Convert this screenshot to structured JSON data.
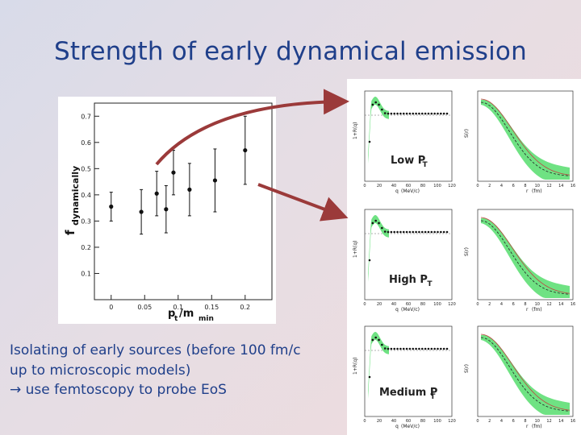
{
  "slide": {
    "title": "Strength of early dynamical emission",
    "body_lines": [
      "Isolating of early sources (before 100 fm/c",
      "up to microscopic models)",
      "use femtoscopy to probe EoS"
    ],
    "arrow_glyph": "→"
  },
  "colors": {
    "title": "#1f3f8a",
    "arrow": "#9b3a3a",
    "band": "#3fd85a",
    "marker": "#111111"
  },
  "chart_data": [
    {
      "type": "scatter",
      "title": "",
      "ylabel": "f",
      "ylabel_sub": "dynamically",
      "xlabel": "p",
      "xlabel_sub1": "t",
      "xlabel_mid": "/m",
      "xlabel_sub2": "min",
      "xlim": [
        -0.025,
        0.24
      ],
      "ylim": [
        0.0,
        0.75
      ],
      "xticks": [
        0,
        0.05,
        0.1,
        0.15,
        0.2
      ],
      "xtick_labels": [
        "0",
        "0.05",
        "0.1",
        "0.15",
        "0.2"
      ],
      "yticks": [
        0.1,
        0.2,
        0.3,
        0.4,
        0.5,
        0.6,
        0.7
      ],
      "ytick_labels": [
        "0.1",
        "0.2",
        "0.3",
        "0.4",
        "0.5",
        "0.6",
        "0.7"
      ],
      "points": [
        {
          "x": 0.0,
          "y": 0.355,
          "err": 0.055
        },
        {
          "x": 0.045,
          "y": 0.335,
          "err": 0.085
        },
        {
          "x": 0.068,
          "y": 0.405,
          "err": 0.085
        },
        {
          "x": 0.082,
          "y": 0.345,
          "err": 0.09
        },
        {
          "x": 0.093,
          "y": 0.485,
          "err": 0.085
        },
        {
          "x": 0.117,
          "y": 0.42,
          "err": 0.1
        },
        {
          "x": 0.155,
          "y": 0.455,
          "err": 0.12
        },
        {
          "x": 0.2,
          "y": 0.57,
          "err": 0.13
        }
      ]
    }
  ],
  "small_panels": {
    "left": {
      "ylabel": "1+R(q)",
      "xlabel_q": "q",
      "xlabel_unit": "(MeV/c)",
      "xticks": [
        0,
        20,
        40,
        60,
        80,
        100,
        120
      ],
      "xtick_labels": [
        "0",
        "20",
        "40",
        "60",
        "80",
        "100",
        "120"
      ]
    },
    "right": {
      "ylabel": "S(r)",
      "xlabel_r": "r",
      "xlabel_unit": "(fm)",
      "xticks": [
        0,
        2,
        4,
        6,
        8,
        10,
        12,
        14,
        16
      ],
      "xtick_labels": [
        "0",
        "2",
        "4",
        "6",
        "8",
        "10",
        "12",
        "14",
        "16"
      ]
    },
    "rows": [
      {
        "label": "Low P",
        "label_sub": "T"
      },
      {
        "label": "High P",
        "label_sub": "T"
      },
      {
        "label": "Medium P",
        "label_sub": "T"
      }
    ]
  }
}
